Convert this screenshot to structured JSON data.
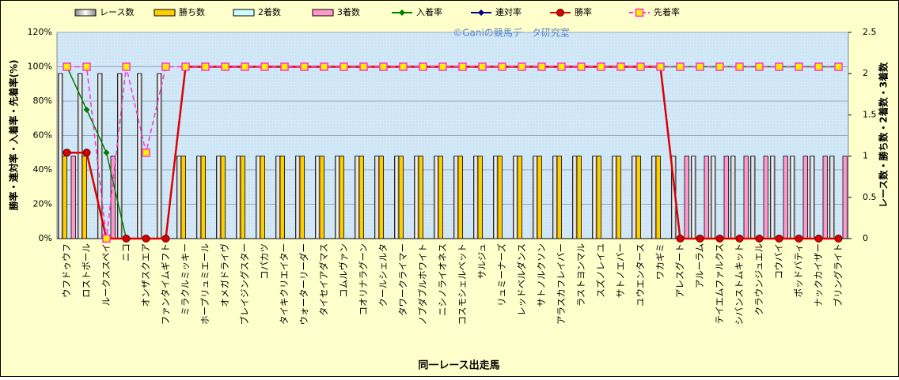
{
  "chart_data": {
    "type": "combo",
    "annotation": "©Ganiの競馬データ研究室",
    "x_label": "同一レース出走馬",
    "y_label": "勝率・連対率・入着率・先着率(%)",
    "y2_label": "レース数・勝ち数・2着数・3着数",
    "categories": [
      "ウフドゥウフ",
      "ロストボール",
      "ルークススペイ",
      "ニコ",
      "オンザスクエア",
      "ファンタイムギフト",
      "ミラクルミッキー",
      "ホープリュミエール",
      "オメガドライヴ",
      "ブレイジングスター",
      "コパカツ",
      "タイキクリエイター",
      "ウォーターリーダー",
      "タイセイアダマス",
      "コムルヴァン",
      "コオリナラグーン",
      "クールシェルタ",
      "タワークライマー",
      "ノブダブルホワイト",
      "ニシノライオネス",
      "コスモシェルベット",
      "サルジュ",
      "リュミーナーズ",
      "レッドベルダンス",
      "サトノルクソン",
      "アラスカフレイバー",
      "ラストヨンマル",
      "スズノレイユ",
      "サトノエバー",
      "ユウエンタース",
      "ワカギミ",
      "アレスグート",
      "アルーラム",
      "テイエムファルクス",
      "シバンストムキット",
      "クラウンジュエル",
      "コウバイ",
      "ポッドバティ",
      "ナックカイザー",
      "ブリングライト"
    ],
    "ylim": [
      0,
      120
    ],
    "yticks": [
      {
        "value": 0,
        "label": "0%"
      },
      {
        "value": 20,
        "label": "20%"
      },
      {
        "value": 40,
        "label": "40%"
      },
      {
        "value": 60,
        "label": "60%"
      },
      {
        "value": 80,
        "label": "80%"
      },
      {
        "value": 100,
        "label": "100%"
      },
      {
        "value": 120,
        "label": "120%"
      }
    ],
    "y2lim": [
      0,
      2.5
    ],
    "y2ticks": [
      0,
      0.5,
      1,
      1.5,
      2,
      2.5
    ],
    "grid": true,
    "series": [
      {
        "name": "レース数",
        "style": "bar",
        "axis": "y2",
        "color": "#ffffff",
        "values": [
          2,
          2,
          2,
          2,
          2,
          2,
          1,
          1,
          1,
          1,
          1,
          1,
          1,
          1,
          1,
          1,
          1,
          1,
          1,
          1,
          1,
          1,
          1,
          1,
          1,
          1,
          1,
          1,
          1,
          1,
          1,
          1,
          1,
          1,
          1,
          1,
          1,
          1,
          1,
          1
        ]
      },
      {
        "name": "勝ち数",
        "style": "bar",
        "axis": "y2",
        "color": "#ffcc00",
        "values": [
          1,
          1,
          0,
          0,
          0,
          0,
          1,
          1,
          1,
          1,
          1,
          1,
          1,
          1,
          1,
          1,
          1,
          1,
          1,
          1,
          1,
          1,
          1,
          1,
          1,
          1,
          1,
          1,
          1,
          1,
          1,
          0,
          0,
          0,
          0,
          0,
          0,
          0,
          0,
          0
        ]
      },
      {
        "name": "2着数",
        "style": "bar",
        "axis": "y2",
        "color": "#ccffff",
        "values": [
          0,
          0,
          0,
          0,
          0,
          0,
          0,
          0,
          0,
          0,
          0,
          0,
          0,
          0,
          0,
          0,
          0,
          0,
          0,
          0,
          0,
          0,
          0,
          0,
          0,
          0,
          0,
          0,
          0,
          0,
          0,
          0,
          0,
          0,
          0,
          0,
          0,
          0,
          0,
          0
        ]
      },
      {
        "name": "3着数",
        "style": "bar",
        "axis": "y2",
        "color": "#ff99cc",
        "values": [
          1,
          0,
          1,
          0,
          0,
          0,
          0,
          0,
          0,
          0,
          0,
          0,
          0,
          0,
          0,
          0,
          0,
          0,
          0,
          0,
          0,
          0,
          0,
          0,
          0,
          0,
          0,
          0,
          0,
          0,
          0,
          1,
          1,
          1,
          1,
          1,
          1,
          1,
          1,
          1
        ]
      },
      {
        "name": "入着率",
        "style": "line",
        "marker": "diamond",
        "color": "#008000",
        "values": [
          100,
          75,
          50,
          0,
          0,
          0,
          100,
          100,
          100,
          100,
          100,
          100,
          100,
          100,
          100,
          100,
          100,
          100,
          100,
          100,
          100,
          100,
          100,
          100,
          100,
          100,
          100,
          100,
          100,
          100,
          100,
          100,
          100,
          100,
          100,
          100,
          100,
          100,
          100,
          100
        ]
      },
      {
        "name": "連対率",
        "style": "line",
        "marker": "diamond",
        "color": "#000080",
        "values": [
          50,
          50,
          0,
          0,
          0,
          0,
          100,
          100,
          100,
          100,
          100,
          100,
          100,
          100,
          100,
          100,
          100,
          100,
          100,
          100,
          100,
          100,
          100,
          100,
          100,
          100,
          100,
          100,
          100,
          100,
          100,
          0,
          0,
          0,
          0,
          0,
          0,
          0,
          0,
          0
        ]
      },
      {
        "name": "勝率",
        "style": "line",
        "marker": "circle",
        "color": "#dd0000",
        "values": [
          50,
          50,
          0,
          0,
          0,
          0,
          100,
          100,
          100,
          100,
          100,
          100,
          100,
          100,
          100,
          100,
          100,
          100,
          100,
          100,
          100,
          100,
          100,
          100,
          100,
          100,
          100,
          100,
          100,
          100,
          100,
          0,
          0,
          0,
          0,
          0,
          0,
          0,
          0,
          0
        ]
      },
      {
        "name": "先着率",
        "style": "line",
        "marker": "square",
        "dashed": true,
        "color": "#ff33cc",
        "values": [
          100,
          100,
          0,
          100,
          50,
          100,
          100,
          100,
          100,
          100,
          100,
          100,
          100,
          100,
          100,
          100,
          100,
          100,
          100,
          100,
          100,
          100,
          100,
          100,
          100,
          100,
          100,
          100,
          100,
          100,
          100,
          100,
          100,
          100,
          100,
          100,
          100,
          100,
          100,
          100
        ]
      }
    ]
  }
}
